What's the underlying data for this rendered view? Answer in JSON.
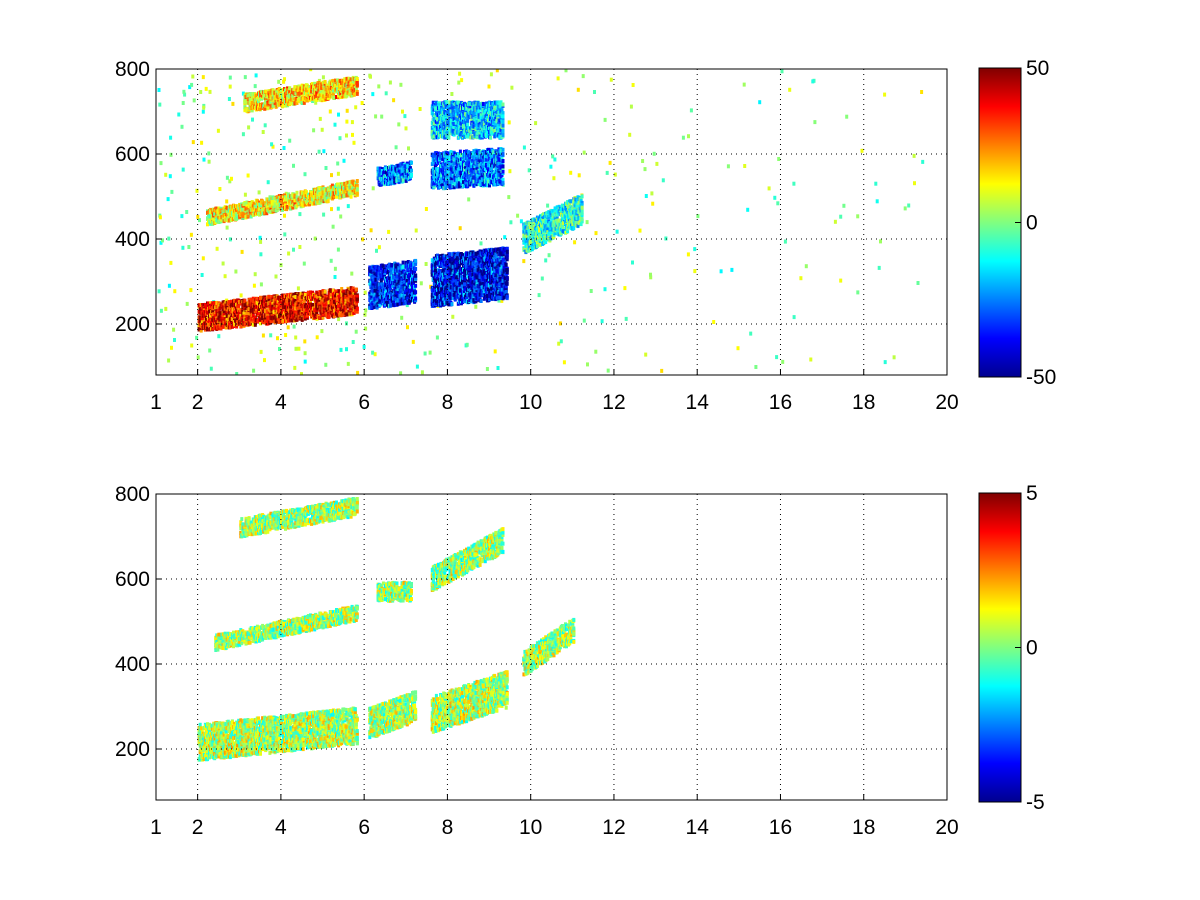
{
  "figure": {
    "background": "#ffffff"
  },
  "chart_data": [
    {
      "type": "heatmap",
      "title": "",
      "xlabel": "",
      "ylabel": "",
      "xlim": [
        1,
        20
      ],
      "ylim": [
        80,
        800
      ],
      "x_ticks": [
        1,
        2,
        4,
        6,
        8,
        10,
        12,
        14,
        16,
        18,
        20
      ],
      "x_tick_labels": [
        "1",
        "2",
        "4",
        "6",
        "8",
        "10",
        "12",
        "14",
        "16",
        "18",
        "20"
      ],
      "y_ticks": [
        200,
        400,
        600,
        800
      ],
      "y_tick_labels": [
        "200",
        "400",
        "600",
        "800"
      ],
      "grid": true,
      "colormap": "jet",
      "clim": [
        -50,
        50
      ],
      "colorbar_ticks": [
        -50,
        0,
        50
      ],
      "colorbar_tick_labels": [
        "-50",
        "0",
        "50"
      ],
      "background_cells": "sparse near-zero values (green/cyan) scattered over x 1-20",
      "bands": [
        {
          "x_start": 2,
          "x_end": 5.8,
          "y_start": 215,
          "y_end": 255,
          "value": 45,
          "width": 45
        },
        {
          "x_start": 2.2,
          "x_end": 5.8,
          "y_start": 450,
          "y_end": 520,
          "value": 15,
          "width": 25
        },
        {
          "x_start": 3.1,
          "x_end": 5.8,
          "y_start": 720,
          "y_end": 760,
          "value": 20,
          "width": 30
        },
        {
          "x_start": 6.1,
          "x_end": 7.2,
          "y_start": 285,
          "y_end": 300,
          "value": -40,
          "width": 70
        },
        {
          "x_start": 6.3,
          "x_end": 7.1,
          "y_start": 545,
          "y_end": 560,
          "value": -30,
          "width": 30
        },
        {
          "x_start": 7.6,
          "x_end": 9.4,
          "y_start": 300,
          "y_end": 320,
          "value": -45,
          "width": 85
        },
        {
          "x_start": 7.6,
          "x_end": 9.3,
          "y_start": 560,
          "y_end": 570,
          "value": -30,
          "width": 60
        },
        {
          "x_start": 7.6,
          "x_end": 9.3,
          "y_start": 680,
          "y_end": 680,
          "value": -20,
          "width": 60
        },
        {
          "x_start": 9.8,
          "x_end": 11.2,
          "y_start": 400,
          "y_end": 470,
          "value": -10,
          "width": 50
        }
      ]
    },
    {
      "type": "heatmap",
      "title": "",
      "xlabel": "",
      "ylabel": "",
      "xlim": [
        1,
        20
      ],
      "ylim": [
        80,
        800
      ],
      "x_ticks": [
        1,
        2,
        4,
        6,
        8,
        10,
        12,
        14,
        16,
        18,
        20
      ],
      "x_tick_labels": [
        "1",
        "2",
        "4",
        "6",
        "8",
        "10",
        "12",
        "14",
        "16",
        "18",
        "20"
      ],
      "y_ticks": [
        200,
        400,
        600,
        800
      ],
      "y_tick_labels": [
        "200",
        "400",
        "600",
        "800"
      ],
      "grid": true,
      "colormap": "jet",
      "clim": [
        -5,
        5
      ],
      "colorbar_ticks": [
        -5,
        0,
        5
      ],
      "colorbar_tick_labels": [
        "-5",
        "0",
        "5"
      ],
      "bands": [
        {
          "x_start": 2,
          "x_end": 5.8,
          "y_start": 215,
          "y_end": 255,
          "value": 0.6,
          "width": 60
        },
        {
          "x_start": 2.4,
          "x_end": 5.8,
          "y_start": 450,
          "y_end": 520,
          "value": 0.4,
          "width": 25
        },
        {
          "x_start": 3,
          "x_end": 5.8,
          "y_start": 720,
          "y_end": 770,
          "value": 0.5,
          "width": 30
        },
        {
          "x_start": 6.1,
          "x_end": 7.2,
          "y_start": 260,
          "y_end": 300,
          "value": 0.5,
          "width": 50
        },
        {
          "x_start": 6.3,
          "x_end": 7.1,
          "y_start": 570,
          "y_end": 570,
          "value": 0.4,
          "width": 30
        },
        {
          "x_start": 7.6,
          "x_end": 9.4,
          "y_start": 280,
          "y_end": 340,
          "value": 0.6,
          "width": 60
        },
        {
          "x_start": 7.6,
          "x_end": 9.3,
          "y_start": 600,
          "y_end": 690,
          "value": 0.4,
          "width": 40
        },
        {
          "x_start": 9.8,
          "x_end": 11,
          "y_start": 400,
          "y_end": 480,
          "value": 0.5,
          "width": 40
        }
      ]
    }
  ]
}
